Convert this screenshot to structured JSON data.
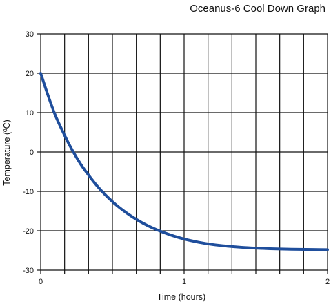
{
  "chart_data": {
    "type": "line",
    "title": "Oceanus-6 Cool Down Graph",
    "xlabel": "Time (hours)",
    "ylabel": "Temperature (ºC)",
    "xlim": [
      0,
      2
    ],
    "ylim": [
      -30,
      30
    ],
    "x_ticks": [
      "0",
      "1",
      "2"
    ],
    "y_ticks": [
      "30",
      "20",
      "10",
      "0",
      "-10",
      "-20",
      "-30"
    ],
    "grid": true,
    "legend": "none",
    "series": [
      {
        "color": "#1f4e9c",
        "x": [
          0,
          0.05,
          0.1,
          0.15,
          0.2,
          0.25,
          0.3,
          0.4,
          0.5,
          0.6,
          0.7,
          0.8,
          0.9,
          1.0,
          1.1,
          1.2,
          1.3,
          1.4,
          1.5,
          1.6,
          1.7,
          1.8,
          1.9,
          2.0
        ],
        "y": [
          20,
          14.5,
          9.5,
          5.5,
          1.8,
          -1.4,
          -4.2,
          -8.9,
          -12.6,
          -15.5,
          -17.8,
          -19.6,
          -21.0,
          -22.1,
          -22.9,
          -23.5,
          -23.9,
          -24.2,
          -24.4,
          -24.55,
          -24.65,
          -24.72,
          -24.76,
          -24.8
        ]
      }
    ]
  }
}
